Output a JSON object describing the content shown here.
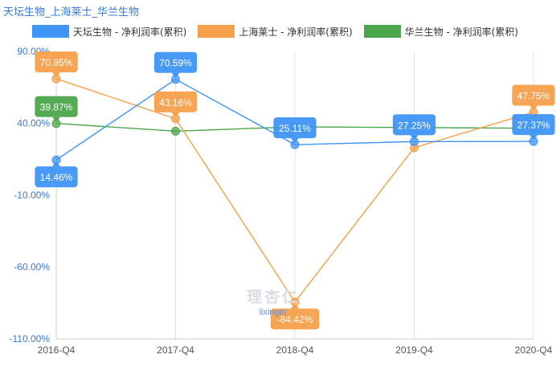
{
  "chart_data": {
    "type": "line",
    "title": "天坛生物_上海莱士_华兰生物",
    "x": [
      "2016-Q4",
      "2017-Q4",
      "2018-Q4",
      "2019-Q4",
      "2020-Q4"
    ],
    "ylim": [
      -110,
      90
    ],
    "yticks": [
      90,
      40,
      -10,
      -60,
      -110
    ],
    "ytick_labels": [
      "90.00%",
      "40.00%",
      "-10.00%",
      "-60.00%",
      "-110.00%"
    ],
    "grid": "vertical",
    "legend_position": "top",
    "series": [
      {
        "name": "天坛生物 - 净利润率(累积)",
        "color": "#3e95f6",
        "values": [
          14.46,
          70.59,
          25.11,
          27.25,
          27.37
        ],
        "labels": [
          "14.46%",
          "70.59%",
          "25.11%",
          "27.25%",
          "27.37%"
        ]
      },
      {
        "name": "上海莱士 - 净利润率(累积)",
        "color": "#f7a04b",
        "values": [
          70.95,
          43.16,
          -84.42,
          23.0,
          47.75
        ],
        "labels": [
          "70.95%",
          "43.16%",
          "-84.42%",
          null,
          "47.75%"
        ]
      },
      {
        "name": "华兰生物 - 净利润率(累积)",
        "color": "#4ca64c",
        "values": [
          39.87,
          34.5,
          37.5,
          37.0,
          36.5
        ],
        "labels": [
          "39.87%",
          null,
          null,
          null,
          null
        ]
      }
    ]
  },
  "watermark": {
    "cn": "理杏仁",
    "en": "lixinger"
  }
}
